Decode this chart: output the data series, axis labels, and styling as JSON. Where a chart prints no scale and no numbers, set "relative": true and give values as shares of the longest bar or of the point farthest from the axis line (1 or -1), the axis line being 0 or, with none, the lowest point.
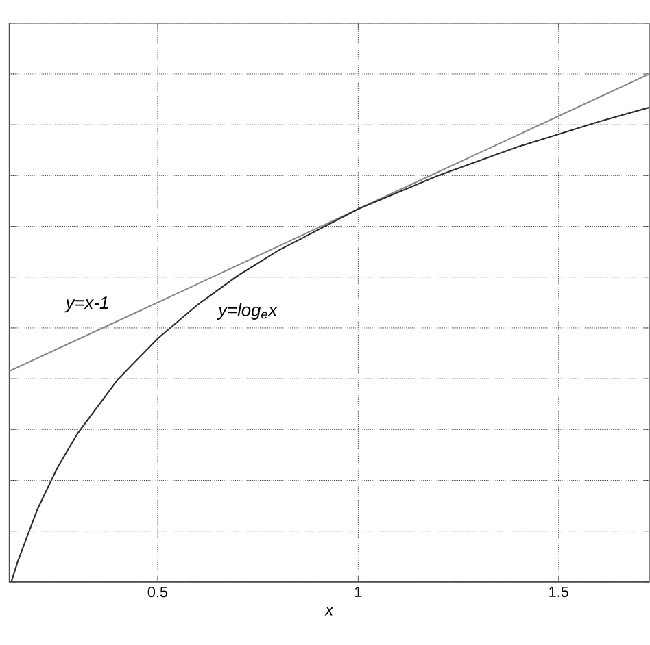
{
  "chart_data": {
    "type": "line",
    "relative": true,
    "xlabel": "x",
    "x": [
      0.135,
      0.15,
      0.2,
      0.25,
      0.3,
      0.4,
      0.5,
      0.6,
      0.7,
      0.8,
      1.0,
      1.2,
      1.4,
      1.6,
      1.726
    ],
    "series": [
      {
        "color": "#8a8a8a",
        "x": [
          0.13,
          0.5,
          1.0,
          1.5,
          1.726
        ],
        "values": [
          0.415,
          0.55,
          0.734,
          0.917,
          1.0
        ]
      },
      {
        "color": "#303030",
        "values": [
          0.0,
          0.038,
          0.143,
          0.225,
          0.292,
          0.398,
          0.479,
          0.546,
          0.603,
          0.652,
          0.734,
          0.8,
          0.857,
          0.906,
          0.934
        ]
      }
    ],
    "annotations": [
      {
        "text": "y=x-1",
        "x": 0.4,
        "y": 0.514
      },
      {
        "text": "y=log$_{e}$x",
        "x": 0.63,
        "y": 0.565
      }
    ],
    "xlim": [
      0.13,
      1.726
    ],
    "xticks": [
      0.5,
      1,
      1.5
    ],
    "grid": true
  }
}
